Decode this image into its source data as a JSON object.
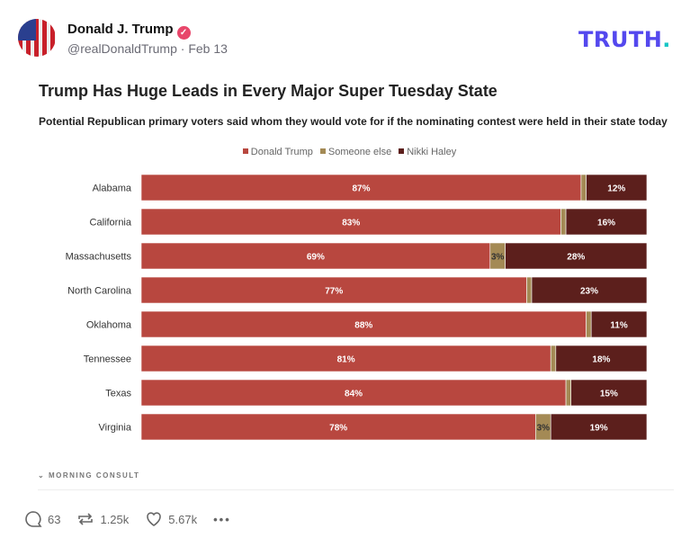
{
  "post": {
    "author_name": "Donald J. Trump",
    "handle": "@realDonaldTrump",
    "date": "Feb 13",
    "verified_icon": "verified-badge-icon",
    "verified_color": "#e8466a"
  },
  "brand": {
    "logo": "TRUTH",
    "logo_dot": ".",
    "logo_color": "#5448ee",
    "dot_color": "#17c5c5"
  },
  "chart_data": {
    "type": "bar",
    "orientation": "horizontal",
    "stacked": true,
    "title": "Trump Has Huge Leads in Every Major Super Tuesday State",
    "subtitle": "Potential Republican primary voters said whom they would vote for if the nominating contest were held in their state today",
    "categories": [
      "Alabama",
      "California",
      "Massachusetts",
      "North Carolina",
      "Oklahoma",
      "Tennessee",
      "Texas",
      "Virginia"
    ],
    "series": [
      {
        "name": "Donald Trump",
        "color": "#b8473f",
        "values": [
          87,
          83,
          69,
          77,
          88,
          81,
          84,
          78
        ],
        "labels": [
          "87%",
          "83%",
          "69%",
          "77%",
          "88%",
          "81%",
          "84%",
          "78%"
        ]
      },
      {
        "name": "Someone else",
        "color": "#a48a55",
        "values": [
          1,
          1,
          3,
          1,
          1,
          1,
          1,
          3
        ],
        "labels": [
          "",
          "",
          "3%",
          "",
          "",
          "",
          "",
          "3%"
        ]
      },
      {
        "name": "Nikki Haley",
        "color": "#5c1f1c",
        "values": [
          12,
          16,
          28,
          23,
          11,
          18,
          15,
          19
        ],
        "labels": [
          "12%",
          "16%",
          "28%",
          "23%",
          "11%",
          "18%",
          "15%",
          "19%"
        ]
      }
    ],
    "legend_position": "top",
    "grid": false,
    "source": "MORNING CONSULT"
  },
  "actions": {
    "replies": "63",
    "reposts": "1.25k",
    "likes": "5.67k"
  }
}
